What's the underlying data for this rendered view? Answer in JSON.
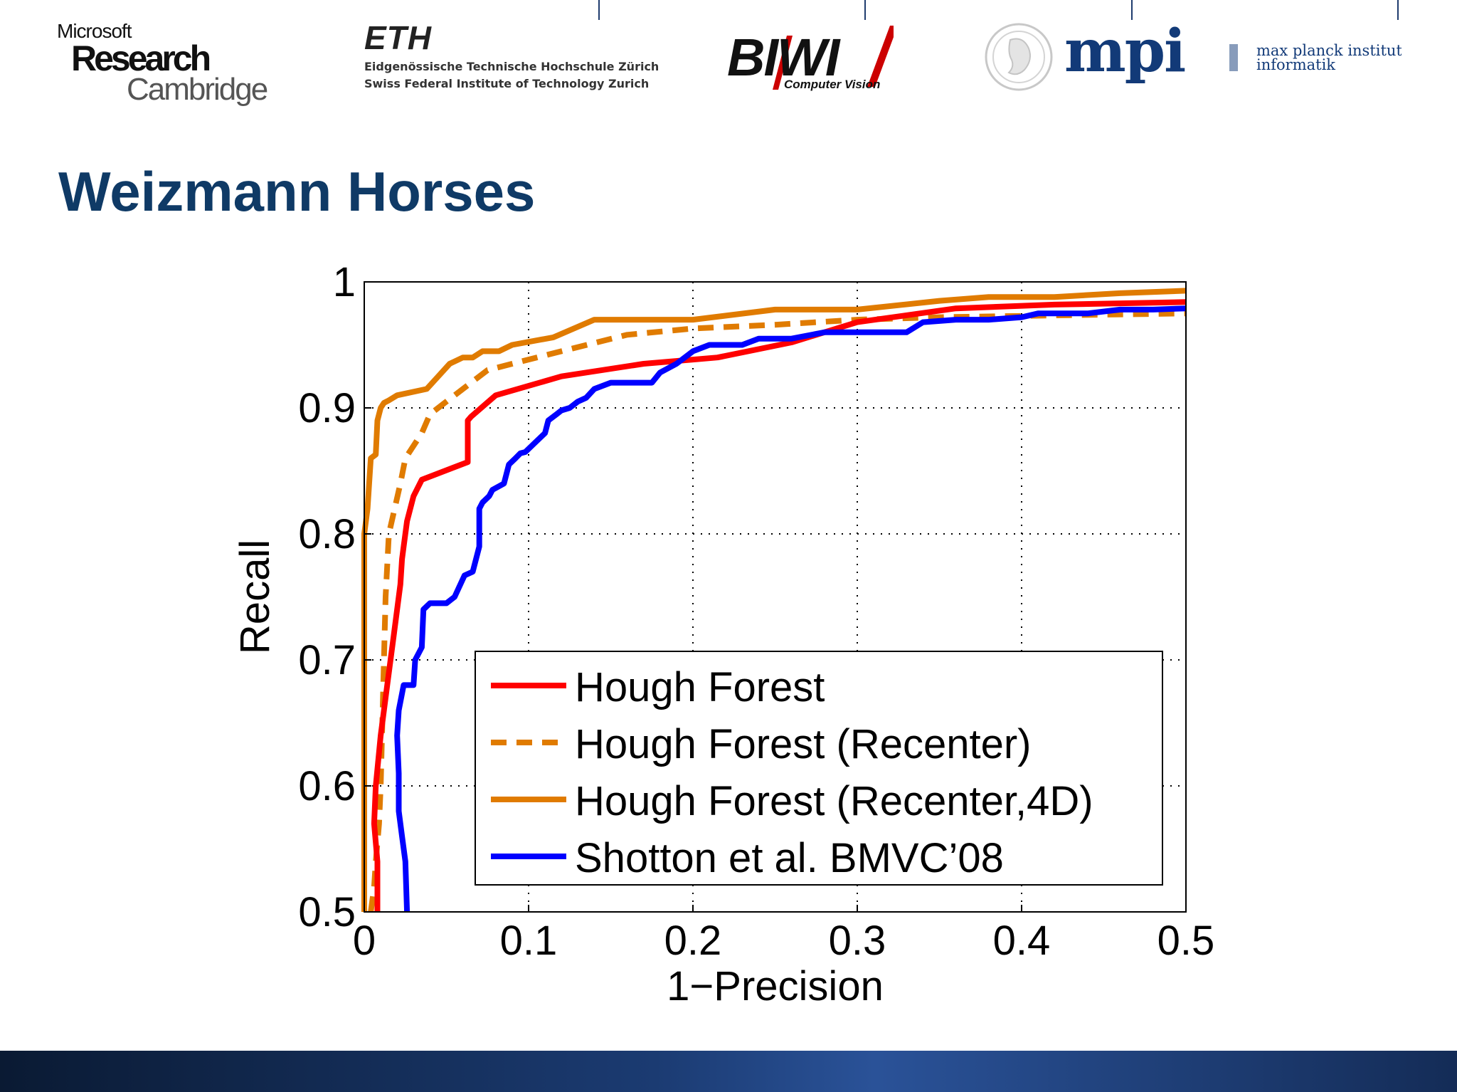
{
  "logos": {
    "microsoft": {
      "line1": "Microsoft",
      "line2": "Research",
      "line3": "Cambridge"
    },
    "eth": {
      "mark": "ETH",
      "line1": "Eidgenössische Technische Hochschule Zürich",
      "line2": "Swiss Federal Institute of Technology Zurich"
    },
    "biwi": {
      "mark": "BIWI",
      "sub": "Computer Vision"
    },
    "mpi": {
      "mark": "mpi",
      "line1": "max planck institut",
      "line2": "informatik"
    }
  },
  "slide": {
    "title": "Weizmann Horses"
  },
  "colors": {
    "title": "#0f3a66",
    "red": "#ff0000",
    "orange": "#e07b00",
    "blue": "#0000ff",
    "grid": "#000000"
  },
  "chart_data": {
    "type": "line",
    "title": "",
    "xlabel": "1−Precision",
    "ylabel": "Recall",
    "xlim": [
      0,
      0.5
    ],
    "ylim": [
      0.5,
      1
    ],
    "xticks": [
      0,
      0.1,
      0.2,
      0.3,
      0.4,
      0.5
    ],
    "yticks": [
      0.5,
      0.6,
      0.7,
      0.8,
      0.9,
      1
    ],
    "xtick_labels": [
      "0",
      "0.1",
      "0.2",
      "0.3",
      "0.4",
      "0.5"
    ],
    "ytick_labels": [
      "0.5",
      "0.6",
      "0.7",
      "0.8",
      "0.9",
      "1"
    ],
    "grid": true,
    "legend_position": "bottom-right",
    "series": [
      {
        "name": "Hough Forest",
        "color": "#ff0000",
        "style": "solid",
        "x": [
          0.008,
          0.008,
          0.006,
          0.007,
          0.01,
          0.014,
          0.018,
          0.022,
          0.023,
          0.023,
          0.024,
          0.026,
          0.03,
          0.035,
          0.045,
          0.063,
          0.063,
          0.065,
          0.08,
          0.12,
          0.17,
          0.215,
          0.26,
          0.3,
          0.36,
          0.42,
          0.5
        ],
        "y": [
          0.5,
          0.54,
          0.57,
          0.6,
          0.64,
          0.68,
          0.72,
          0.76,
          0.78,
          0.78,
          0.79,
          0.81,
          0.83,
          0.843,
          0.848,
          0.857,
          0.89,
          0.893,
          0.91,
          0.925,
          0.935,
          0.94,
          0.952,
          0.968,
          0.979,
          0.982,
          0.984
        ]
      },
      {
        "name": "Hough Forest (Recenter)",
        "color": "#e07b00",
        "style": "dashed",
        "x": [
          0.004,
          0.006,
          0.007,
          0.009,
          0.01,
          0.011,
          0.012,
          0.013,
          0.015,
          0.022,
          0.025,
          0.035,
          0.04,
          0.05,
          0.06,
          0.075,
          0.09,
          0.12,
          0.16,
          0.2,
          0.25,
          0.3,
          0.35,
          0.4,
          0.45,
          0.5
        ],
        "y": [
          0.5,
          0.52,
          0.54,
          0.57,
          0.6,
          0.65,
          0.7,
          0.75,
          0.8,
          0.84,
          0.86,
          0.88,
          0.895,
          0.905,
          0.915,
          0.93,
          0.935,
          0.945,
          0.958,
          0.963,
          0.966,
          0.97,
          0.972,
          0.973,
          0.974,
          0.975
        ]
      },
      {
        "name": "Hough Forest (Recenter,4D)",
        "color": "#e07b00",
        "style": "solid",
        "x": [
          0.0,
          0.0,
          0.002,
          0.004,
          0.007,
          0.008,
          0.009,
          0.01,
          0.012,
          0.015,
          0.02,
          0.038,
          0.045,
          0.052,
          0.06,
          0.066,
          0.072,
          0.082,
          0.09,
          0.115,
          0.14,
          0.2,
          0.25,
          0.3,
          0.35,
          0.38,
          0.42,
          0.46,
          0.5
        ],
        "y": [
          0.5,
          0.8,
          0.82,
          0.86,
          0.863,
          0.89,
          0.895,
          0.9,
          0.904,
          0.906,
          0.91,
          0.915,
          0.925,
          0.935,
          0.94,
          0.94,
          0.945,
          0.945,
          0.95,
          0.956,
          0.97,
          0.97,
          0.978,
          0.978,
          0.985,
          0.988,
          0.988,
          0.991,
          0.993
        ]
      },
      {
        "name": "Shotton et al. BMVC’08",
        "color": "#0000ff",
        "style": "solid",
        "x": [
          0.026,
          0.025,
          0.023,
          0.021,
          0.021,
          0.02,
          0.021,
          0.024,
          0.03,
          0.031,
          0.035,
          0.036,
          0.04,
          0.05,
          0.055,
          0.061,
          0.066,
          0.07,
          0.07,
          0.072,
          0.076,
          0.078,
          0.085,
          0.088,
          0.092,
          0.095,
          0.098,
          0.102,
          0.11,
          0.112,
          0.117,
          0.12,
          0.125,
          0.13,
          0.135,
          0.14,
          0.15,
          0.16,
          0.175,
          0.18,
          0.19,
          0.2,
          0.21,
          0.23,
          0.24,
          0.26,
          0.28,
          0.31,
          0.33,
          0.34,
          0.36,
          0.38,
          0.4,
          0.41,
          0.44,
          0.46,
          0.48,
          0.5
        ],
        "y": [
          0.5,
          0.54,
          0.56,
          0.58,
          0.61,
          0.64,
          0.66,
          0.68,
          0.68,
          0.7,
          0.71,
          0.74,
          0.745,
          0.745,
          0.75,
          0.767,
          0.77,
          0.79,
          0.82,
          0.825,
          0.83,
          0.835,
          0.84,
          0.855,
          0.86,
          0.864,
          0.865,
          0.87,
          0.88,
          0.89,
          0.895,
          0.898,
          0.9,
          0.905,
          0.908,
          0.915,
          0.92,
          0.92,
          0.92,
          0.928,
          0.935,
          0.945,
          0.95,
          0.95,
          0.955,
          0.955,
          0.96,
          0.96,
          0.96,
          0.968,
          0.97,
          0.97,
          0.972,
          0.975,
          0.975,
          0.978,
          0.978,
          0.979
        ]
      }
    ]
  }
}
